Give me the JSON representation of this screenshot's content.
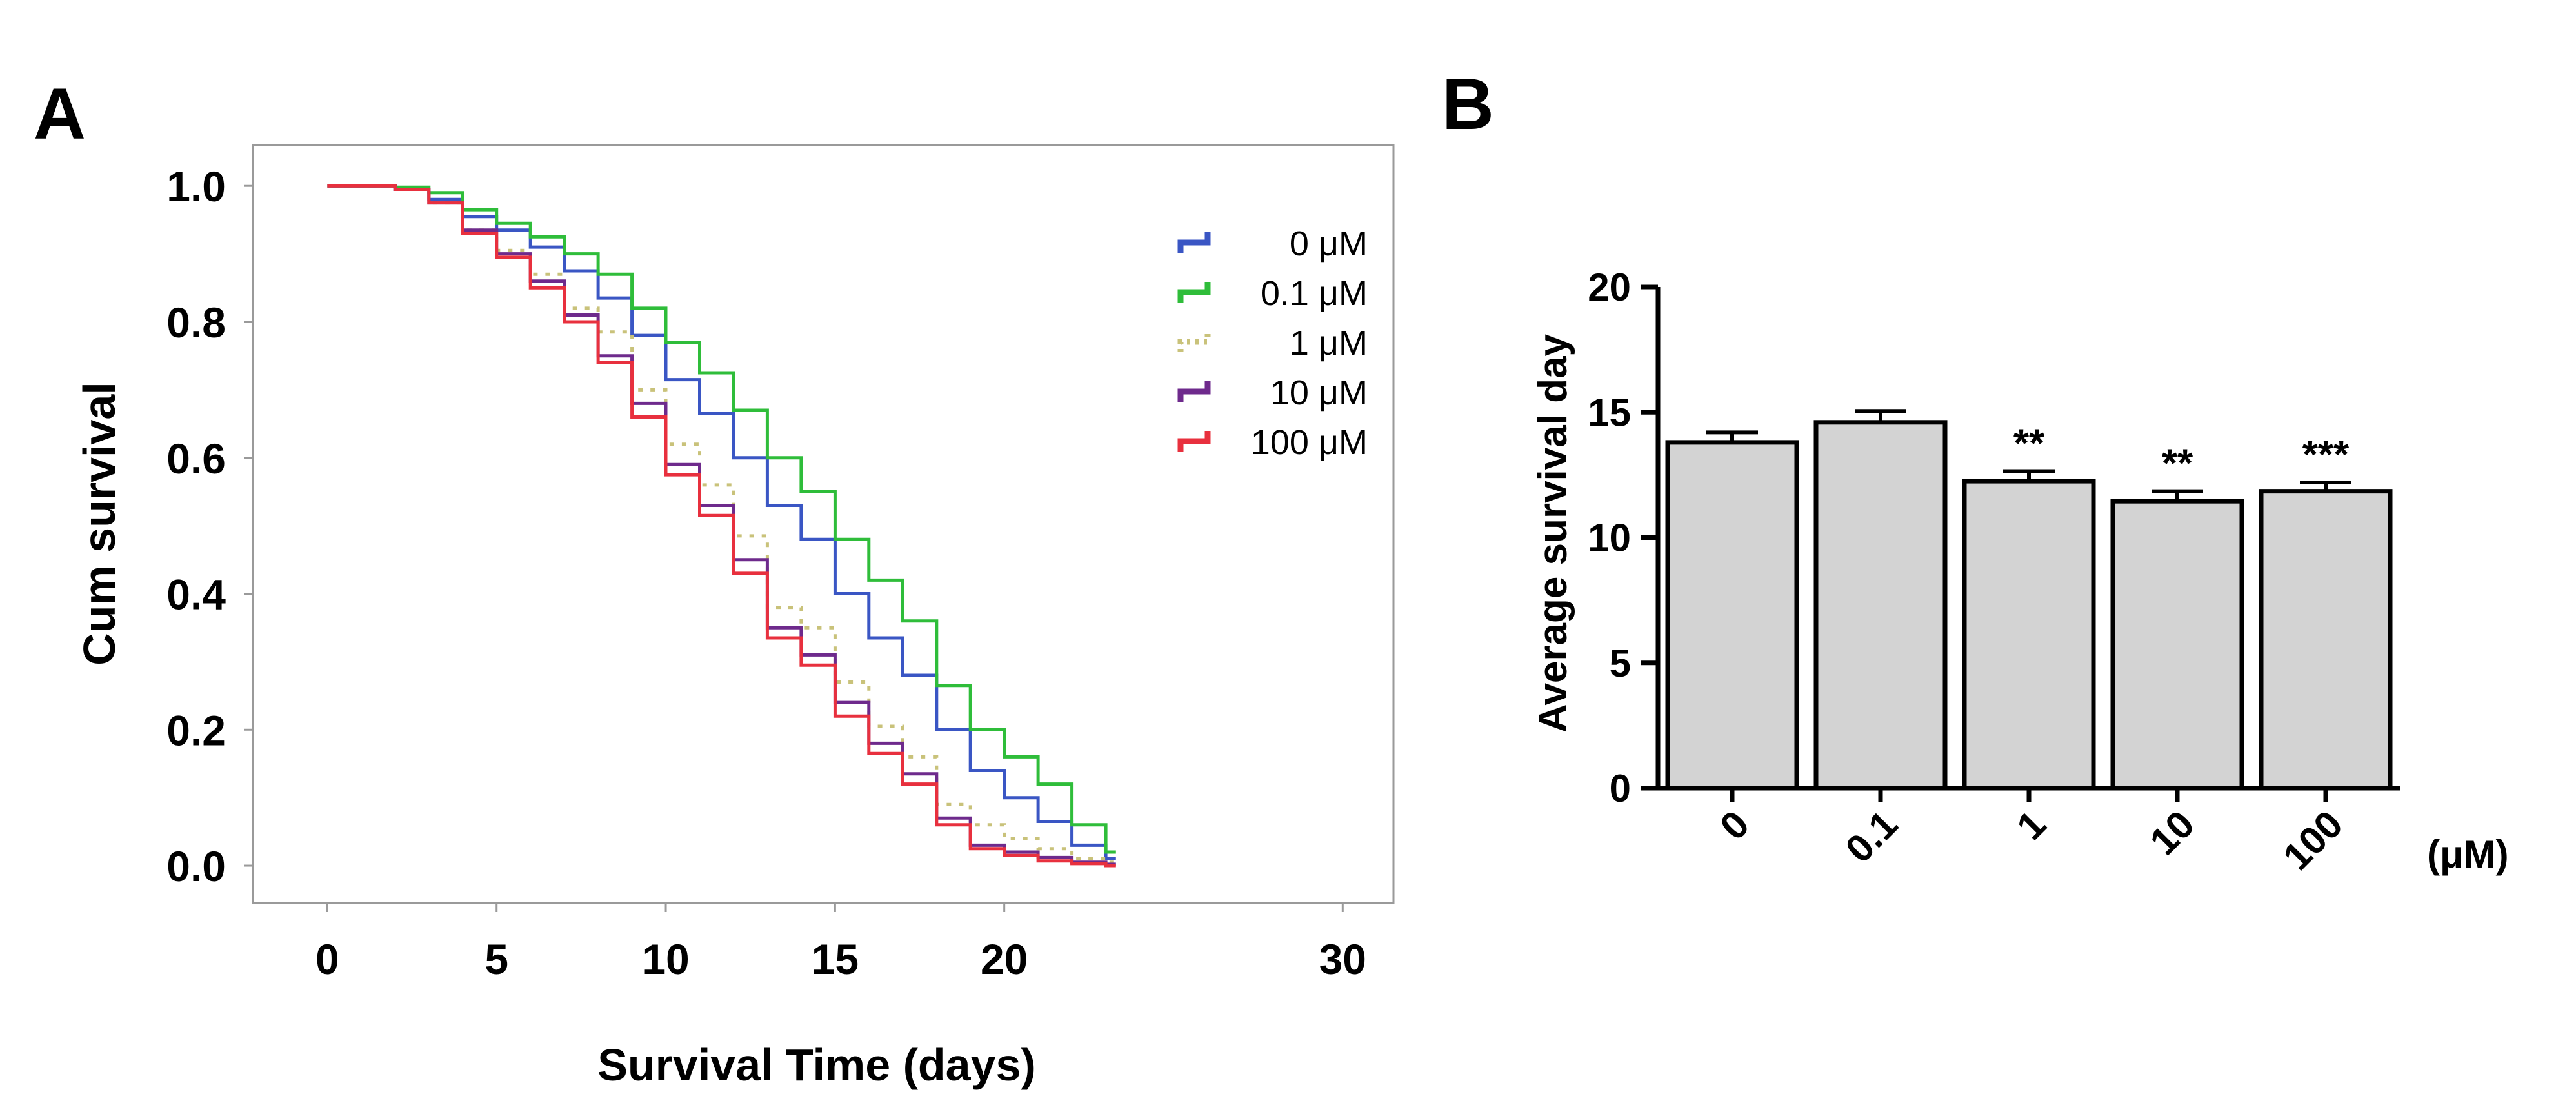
{
  "panels": {
    "a_label": "A",
    "b_label": "B"
  },
  "chart_data": [
    {
      "id": "A",
      "type": "line",
      "subtype": "kaplan-meier step",
      "xlabel": "Survival Time (days)",
      "ylabel": "Cum survival",
      "xlim": [
        -2.2,
        31.5
      ],
      "ylim": [
        -0.055,
        1.06
      ],
      "xticks": [
        0,
        5,
        10,
        15,
        20,
        30
      ],
      "xtick_labels": [
        "0",
        "5",
        "10",
        "15",
        "20",
        "30"
      ],
      "yticks": [
        0.0,
        0.2,
        0.4,
        0.6,
        0.8,
        1.0
      ],
      "ytick_labels": [
        "0.0",
        "0.2",
        "0.4",
        "0.6",
        "0.8",
        "1.0"
      ],
      "legend_position": "top-right",
      "x": [
        0,
        2,
        3,
        4,
        5,
        6,
        7,
        8,
        9,
        10,
        11,
        12,
        13,
        14,
        15,
        16,
        17,
        18,
        19,
        20,
        21,
        22,
        23
      ],
      "series": [
        {
          "name": "0 μM",
          "color": "#3a56c4",
          "dashed": false,
          "values": [
            1.0,
            0.995,
            0.98,
            0.955,
            0.935,
            0.91,
            0.875,
            0.835,
            0.78,
            0.715,
            0.665,
            0.6,
            0.53,
            0.48,
            0.4,
            0.335,
            0.28,
            0.2,
            0.14,
            0.1,
            0.065,
            0.03,
            0.01
          ]
        },
        {
          "name": "0.1 μM",
          "color": "#2fbd3a",
          "dashed": false,
          "values": [
            1.0,
            0.998,
            0.99,
            0.965,
            0.945,
            0.925,
            0.9,
            0.87,
            0.82,
            0.77,
            0.725,
            0.67,
            0.6,
            0.55,
            0.48,
            0.42,
            0.36,
            0.265,
            0.2,
            0.16,
            0.12,
            0.06,
            0.02
          ]
        },
        {
          "name": "1 μM",
          "color": "#c9c27a",
          "dashed": true,
          "values": [
            1.0,
            0.995,
            0.975,
            0.935,
            0.905,
            0.87,
            0.82,
            0.785,
            0.7,
            0.62,
            0.56,
            0.485,
            0.38,
            0.35,
            0.27,
            0.205,
            0.16,
            0.09,
            0.06,
            0.04,
            0.025,
            0.01,
            0.005
          ]
        },
        {
          "name": "10 μM",
          "color": "#6e2a8c",
          "dashed": false,
          "values": [
            1.0,
            0.995,
            0.975,
            0.935,
            0.9,
            0.86,
            0.81,
            0.75,
            0.68,
            0.59,
            0.53,
            0.45,
            0.35,
            0.31,
            0.24,
            0.18,
            0.135,
            0.07,
            0.03,
            0.02,
            0.012,
            0.005,
            0.002
          ]
        },
        {
          "name": "100 μM",
          "color": "#e8303e",
          "dashed": false,
          "values": [
            1.0,
            0.995,
            0.975,
            0.93,
            0.895,
            0.85,
            0.8,
            0.74,
            0.66,
            0.575,
            0.515,
            0.43,
            0.335,
            0.295,
            0.22,
            0.165,
            0.12,
            0.06,
            0.025,
            0.015,
            0.007,
            0.003,
            0.0
          ]
        }
      ]
    },
    {
      "id": "B",
      "type": "bar",
      "ylabel": "Average survival day",
      "xlabel": "",
      "unit_label": "(μM)",
      "categories": [
        "0",
        "0.1",
        "1",
        "10",
        "100"
      ],
      "values": [
        13.8,
        14.6,
        12.25,
        11.45,
        11.85
      ],
      "errors": [
        0.4,
        0.45,
        0.4,
        0.4,
        0.35
      ],
      "significance": [
        "",
        "",
        "**",
        "**",
        "***"
      ],
      "ylim": [
        0,
        20
      ],
      "yticks": [
        0,
        5,
        10,
        15,
        20
      ],
      "ytick_labels": [
        "0",
        "5",
        "10",
        "15",
        "20"
      ],
      "bar_color": "#d3d3d3"
    }
  ]
}
